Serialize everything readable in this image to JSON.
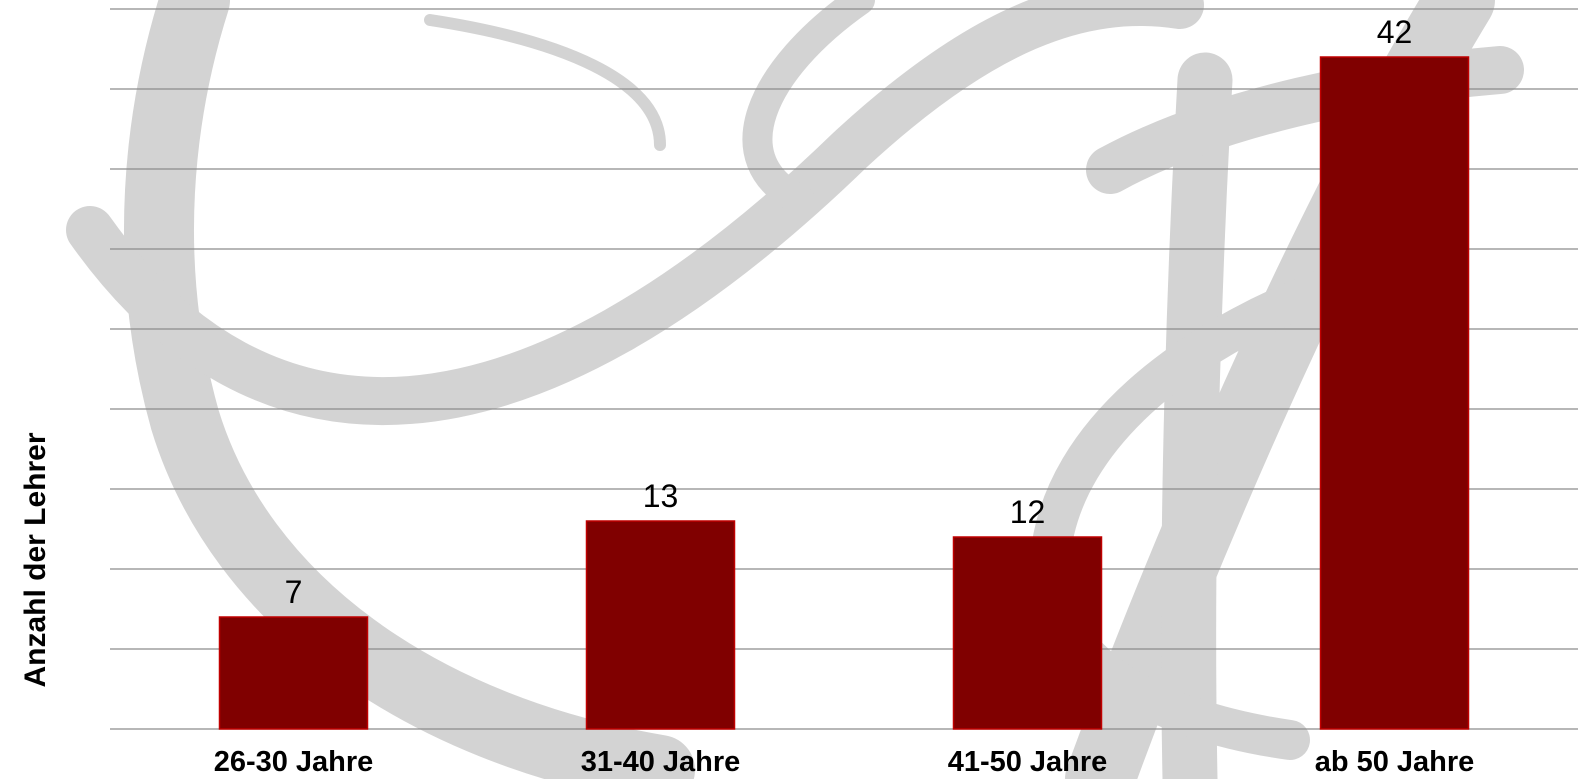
{
  "chart_data": {
    "type": "bar",
    "categories": [
      "26-30 Jahre",
      "31-40 Jahre",
      "41-50 Jahre",
      "ab 50 Jahre"
    ],
    "values": [
      7,
      13,
      12,
      42
    ],
    "data_labels": [
      "7",
      "13",
      "12",
      "42"
    ],
    "title": "",
    "xlabel": "",
    "ylabel": "Anzahl der Lehrer",
    "ylim": [
      0,
      45
    ],
    "grid": true,
    "legend": "none",
    "bar_color": "#800000",
    "bar_edge_color": "#c00000",
    "gridline_color": "#8c8c8c",
    "watermark_color": "#d3d3d3"
  }
}
